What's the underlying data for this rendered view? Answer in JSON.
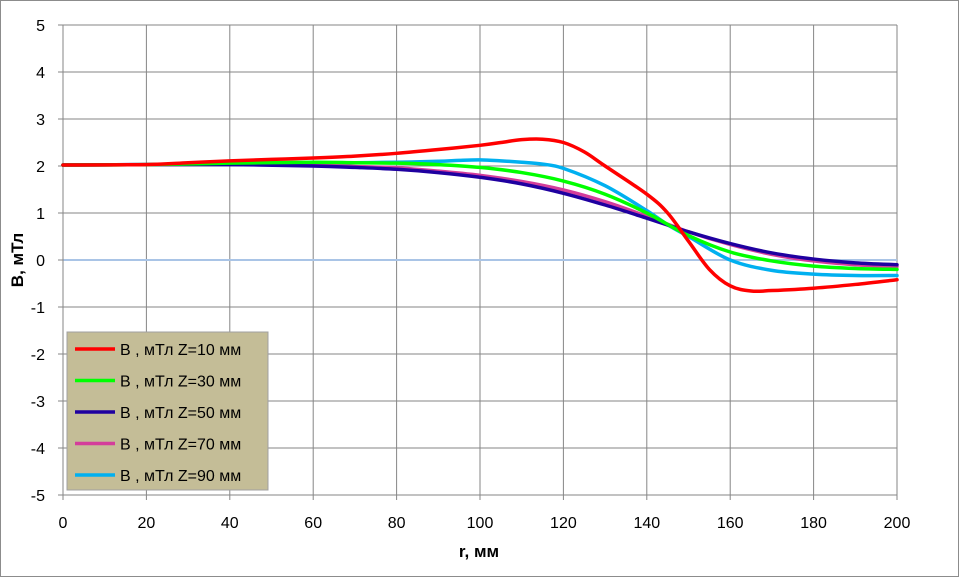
{
  "chart_data": {
    "type": "line",
    "title": "",
    "xlabel": "r, мм",
    "ylabel": "B, мТл",
    "xlim": [
      0,
      200
    ],
    "ylim": [
      -5,
      5
    ],
    "xticks": [
      0,
      20,
      40,
      60,
      80,
      100,
      120,
      140,
      160,
      180,
      200
    ],
    "yticks": [
      -5,
      -4,
      -3,
      -2,
      -1,
      0,
      1,
      2,
      3,
      4,
      5
    ],
    "grid": true,
    "legend_position": "bottom-left",
    "legend_background": "#C4BD97",
    "series": [
      {
        "name": "B , мТл Z=10 мм",
        "color": "#FF0000",
        "x": [
          0,
          20,
          30,
          40,
          50,
          60,
          70,
          80,
          90,
          100,
          105,
          110,
          115,
          120,
          125,
          130,
          140,
          145,
          150,
          155,
          160,
          165,
          170,
          180,
          190,
          200
        ],
        "y": [
          2.02,
          2.03,
          2.07,
          2.11,
          2.14,
          2.17,
          2.21,
          2.27,
          2.35,
          2.44,
          2.5,
          2.56,
          2.57,
          2.5,
          2.3,
          2.0,
          1.4,
          1.0,
          0.4,
          -0.2,
          -0.55,
          -0.66,
          -0.65,
          -0.6,
          -0.52,
          -0.42
        ]
      },
      {
        "name": "B , мТл Z=30 мм",
        "color": "#00FF00",
        "x": [
          0,
          20,
          40,
          60,
          70,
          80,
          90,
          100,
          110,
          120,
          130,
          140,
          150,
          160,
          170,
          180,
          190,
          200
        ],
        "y": [
          2.02,
          2.03,
          2.06,
          2.08,
          2.07,
          2.06,
          2.03,
          1.97,
          1.86,
          1.68,
          1.4,
          1.0,
          0.52,
          0.17,
          -0.02,
          -0.13,
          -0.18,
          -0.2
        ]
      },
      {
        "name": "B , мТл Z=50 мм",
        "color": "#1F00A0",
        "x": [
          0,
          20,
          40,
          60,
          70,
          80,
          90,
          100,
          110,
          120,
          130,
          140,
          150,
          160,
          170,
          180,
          190,
          200
        ],
        "y": [
          2.02,
          2.03,
          2.03,
          2.0,
          1.97,
          1.93,
          1.86,
          1.76,
          1.62,
          1.42,
          1.17,
          0.89,
          0.6,
          0.35,
          0.15,
          0.02,
          -0.06,
          -0.1
        ]
      },
      {
        "name": "B , мТл Z=70 мм",
        "color": "#D43D9B",
        "x": [
          0,
          20,
          40,
          60,
          70,
          80,
          90,
          100,
          110,
          120,
          130,
          140,
          150,
          160,
          170,
          180,
          190,
          200
        ],
        "y": [
          2.02,
          2.03,
          2.04,
          2.02,
          1.99,
          1.96,
          1.89,
          1.8,
          1.67,
          1.49,
          1.24,
          0.93,
          0.6,
          0.33,
          0.12,
          -0.02,
          -0.1,
          -0.14
        ]
      },
      {
        "name": "B , мТл Z=90 мм",
        "color": "#00B0F0",
        "x": [
          0,
          20,
          40,
          60,
          70,
          80,
          90,
          95,
          100,
          105,
          110,
          115,
          120,
          130,
          140,
          145,
          150,
          160,
          170,
          180,
          190,
          200
        ],
        "y": [
          2.02,
          2.03,
          2.05,
          2.06,
          2.07,
          2.08,
          2.1,
          2.12,
          2.13,
          2.11,
          2.08,
          2.04,
          1.95,
          1.58,
          1.05,
          0.75,
          0.5,
          0.0,
          -0.22,
          -0.3,
          -0.33,
          -0.33
        ]
      }
    ]
  }
}
